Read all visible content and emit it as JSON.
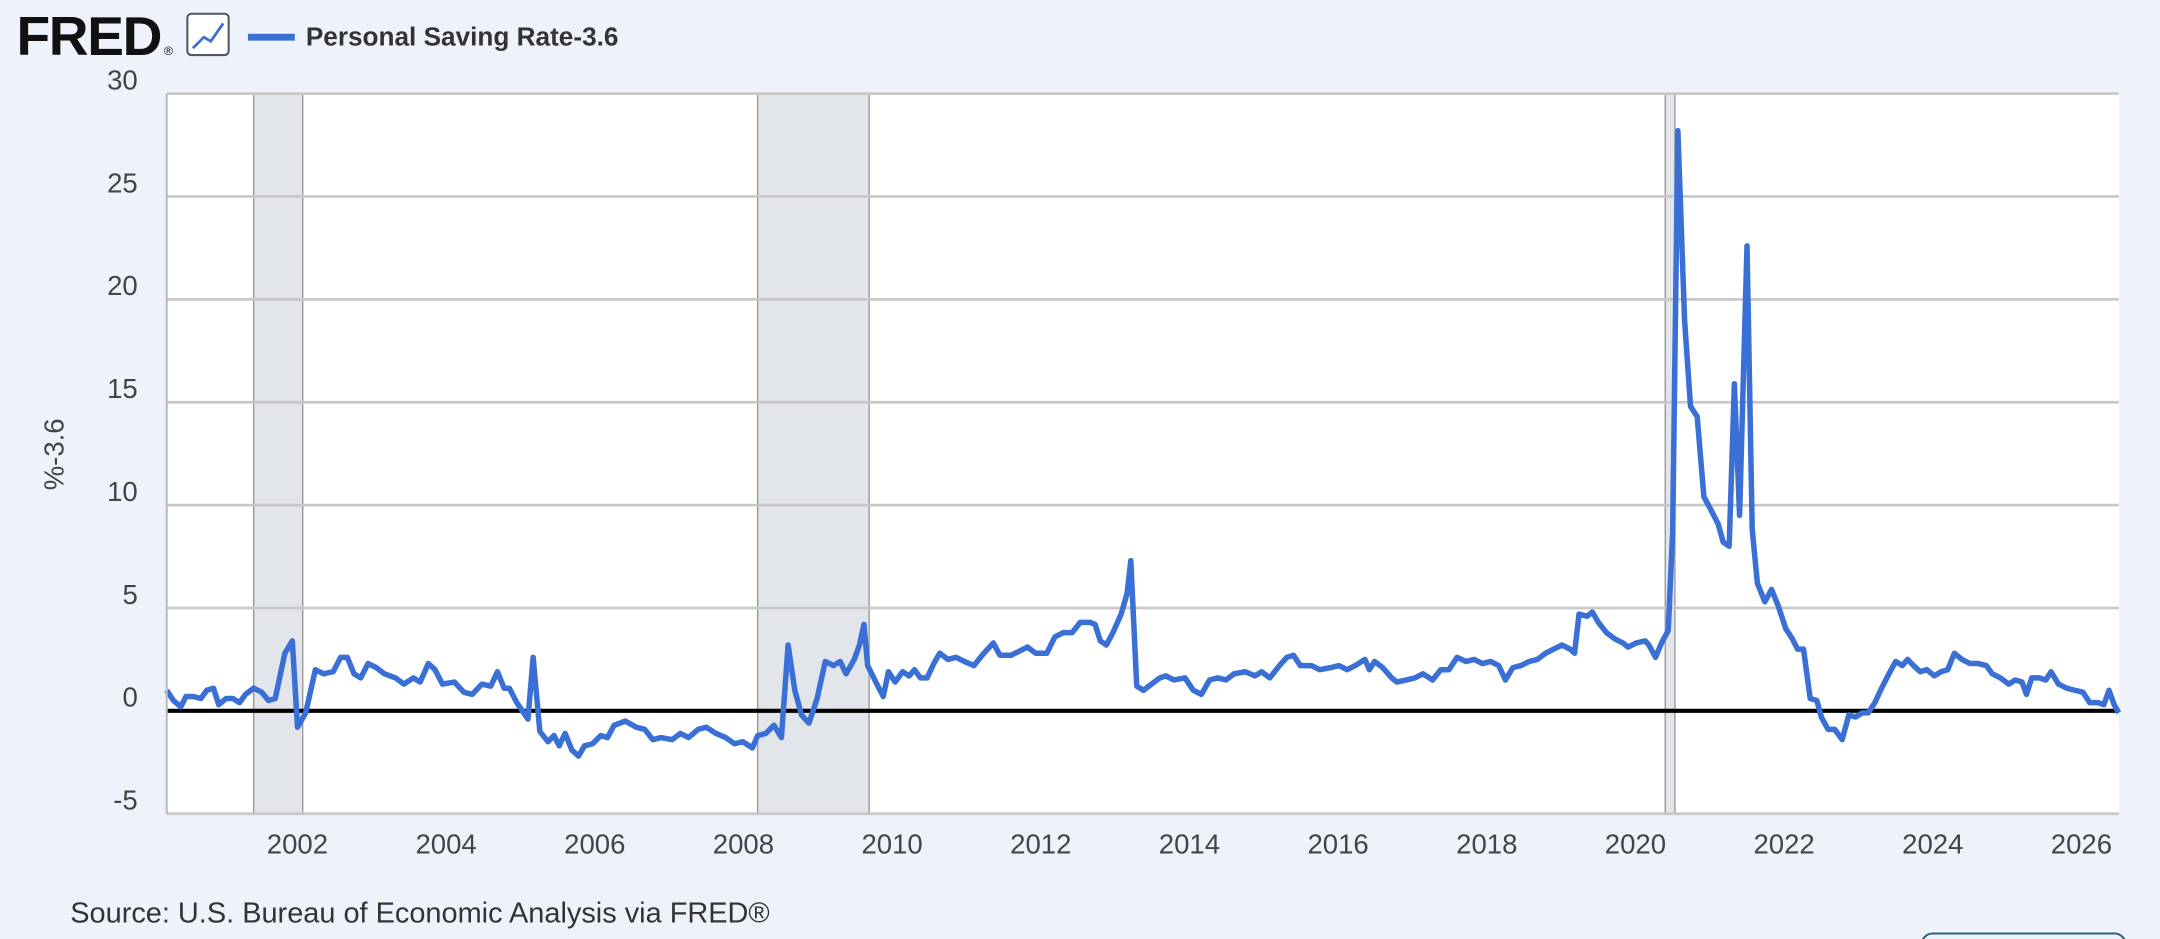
{
  "chart_data": {
    "type": "line",
    "logo": "FRED",
    "logo_mark": "®",
    "ylabel": "%-3.6",
    "source": "Source: U.S. Bureau of Economic Analysis via FRED®",
    "xlim": [
      2000,
      2026.26
    ],
    "xticks": [
      2002,
      2004,
      2006,
      2008,
      2010,
      2012,
      2014,
      2016,
      2018,
      2020,
      2022,
      2024,
      2026
    ],
    "ylim": [
      -5,
      30
    ],
    "yticks": [
      -5,
      0,
      5,
      10,
      15,
      20,
      25,
      30
    ],
    "grid": true,
    "recessions": [
      [
        2001.17,
        2001.83
      ],
      [
        2007.95,
        2009.45
      ],
      [
        2020.16,
        2020.29
      ]
    ],
    "x": [
      2000.0,
      2000.09,
      2000.19,
      2000.26,
      2000.35,
      2000.46,
      2000.54,
      2000.63,
      2000.7,
      2000.8,
      2000.89,
      2000.98,
      2001.06,
      2001.17,
      2001.28,
      2001.37,
      2001.46,
      2001.59,
      2001.69,
      2001.76,
      2001.87,
      2002.0,
      2002.11,
      2002.24,
      2002.34,
      2002.43,
      2002.52,
      2002.61,
      2002.71,
      2002.82,
      2002.93,
      2003.08,
      2003.19,
      2003.32,
      2003.41,
      2003.52,
      2003.61,
      2003.71,
      2003.87,
      2004.0,
      2004.11,
      2004.24,
      2004.36,
      2004.45,
      2004.54,
      2004.61,
      2004.71,
      2004.86,
      2004.93,
      2005.02,
      2005.13,
      2005.21,
      2005.28,
      2005.36,
      2005.45,
      2005.54,
      2005.62,
      2005.73,
      2005.84,
      2005.93,
      2006.02,
      2006.17,
      2006.32,
      2006.43,
      2006.54,
      2006.65,
      2006.8,
      2006.91,
      2007.02,
      2007.15,
      2007.26,
      2007.39,
      2007.52,
      2007.64,
      2007.75,
      2007.88,
      2007.95,
      2008.06,
      2008.17,
      2008.27,
      2008.36,
      2008.45,
      2008.54,
      2008.64,
      2008.75,
      2008.86,
      2008.97,
      2009.06,
      2009.14,
      2009.25,
      2009.32,
      2009.38,
      2009.43,
      2009.54,
      2009.64,
      2009.71,
      2009.8,
      2009.9,
      2009.99,
      2010.06,
      2010.14,
      2010.23,
      2010.32,
      2010.4,
      2010.51,
      2010.62,
      2010.73,
      2010.86,
      2010.97,
      2011.12,
      2011.21,
      2011.36,
      2011.47,
      2011.58,
      2011.69,
      2011.84,
      2011.95,
      2012.06,
      2012.18,
      2012.29,
      2012.42,
      2012.49,
      2012.56,
      2012.64,
      2012.73,
      2012.84,
      2012.92,
      2012.97,
      2013.05,
      2013.14,
      2013.25,
      2013.36,
      2013.44,
      2013.55,
      2013.7,
      2013.81,
      2013.92,
      2014.03,
      2014.14,
      2014.25,
      2014.36,
      2014.51,
      2014.64,
      2014.73,
      2014.84,
      2014.97,
      2015.07,
      2015.16,
      2015.25,
      2015.4,
      2015.51,
      2015.66,
      2015.77,
      2015.88,
      2015.99,
      2016.12,
      2016.18,
      2016.25,
      2016.36,
      2016.48,
      2016.55,
      2016.68,
      2016.79,
      2016.9,
      2017.03,
      2017.14,
      2017.25,
      2017.36,
      2017.48,
      2017.59,
      2017.7,
      2017.81,
      2017.92,
      2018.01,
      2018.11,
      2018.22,
      2018.33,
      2018.44,
      2018.55,
      2018.66,
      2018.77,
      2018.88,
      2018.94,
      2019.0,
      2019.11,
      2019.18,
      2019.26,
      2019.37,
      2019.48,
      2019.59,
      2019.66,
      2019.77,
      2019.89,
      2019.94,
      2020.03,
      2020.11,
      2020.2,
      2020.26,
      2020.33,
      2020.42,
      2020.5,
      2020.59,
      2020.68,
      2020.77,
      2020.87,
      2020.94,
      2021.02,
      2021.09,
      2021.16,
      2021.26,
      2021.33,
      2021.4,
      2021.5,
      2021.59,
      2021.68,
      2021.78,
      2021.87,
      2021.94,
      2022.02,
      2022.11,
      2022.2,
      2022.26,
      2022.35,
      2022.44,
      2022.54,
      2022.63,
      2022.72,
      2022.81,
      2022.89,
      2022.98,
      2023.07,
      2023.17,
      2023.26,
      2023.35,
      2023.42,
      2023.5,
      2023.59,
      2023.68,
      2023.78,
      2023.87,
      2023.96,
      2024.05,
      2024.15,
      2024.26,
      2024.37,
      2024.48,
      2024.56,
      2024.67,
      2024.78,
      2024.87,
      2024.96,
      2025.02,
      2025.09,
      2025.19,
      2025.28,
      2025.35,
      2025.45,
      2025.56,
      2025.67,
      2025.78,
      2025.87,
      2025.98,
      2026.06,
      2026.13,
      2026.2,
      2026.26
    ],
    "series": [
      {
        "name": "Personal Saving Rate-3.6",
        "color": "#3a6fd6",
        "values": [
          1.0,
          0.5,
          0.2,
          0.7,
          0.7,
          0.6,
          1.0,
          1.1,
          0.3,
          0.6,
          0.6,
          0.4,
          0.8,
          1.1,
          0.9,
          0.5,
          0.6,
          2.8,
          3.4,
          -0.8,
          -0.1,
          2.0,
          1.8,
          1.9,
          2.6,
          2.6,
          1.8,
          1.6,
          2.3,
          2.1,
          1.8,
          1.6,
          1.3,
          1.6,
          1.4,
          2.3,
          2.0,
          1.3,
          1.4,
          0.9,
          0.8,
          1.3,
          1.2,
          1.9,
          1.1,
          1.1,
          0.4,
          -0.4,
          2.6,
          -1.0,
          -1.5,
          -1.2,
          -1.7,
          -1.1,
          -1.9,
          -2.2,
          -1.7,
          -1.6,
          -1.2,
          -1.3,
          -0.7,
          -0.5,
          -0.8,
          -0.9,
          -1.4,
          -1.3,
          -1.4,
          -1.1,
          -1.3,
          -0.9,
          -0.8,
          -1.1,
          -1.3,
          -1.6,
          -1.5,
          -1.8,
          -1.2,
          -1.1,
          -0.7,
          -1.3,
          3.2,
          1.0,
          -0.2,
          -0.6,
          0.6,
          2.4,
          2.2,
          2.4,
          1.8,
          2.5,
          3.2,
          4.2,
          2.2,
          1.4,
          0.7,
          1.9,
          1.4,
          1.9,
          1.7,
          2.0,
          1.6,
          1.6,
          2.3,
          2.8,
          2.5,
          2.6,
          2.4,
          2.2,
          2.7,
          3.3,
          2.7,
          2.7,
          2.9,
          3.1,
          2.8,
          2.8,
          3.6,
          3.8,
          3.8,
          4.3,
          4.3,
          4.2,
          3.4,
          3.2,
          3.8,
          4.7,
          5.7,
          7.3,
          1.2,
          1.0,
          1.3,
          1.6,
          1.7,
          1.5,
          1.6,
          1.0,
          0.8,
          1.5,
          1.6,
          1.5,
          1.8,
          1.9,
          1.7,
          1.9,
          1.6,
          2.2,
          2.6,
          2.7,
          2.2,
          2.2,
          2.0,
          2.1,
          2.2,
          2.0,
          2.2,
          2.5,
          2.0,
          2.4,
          2.1,
          1.6,
          1.4,
          1.5,
          1.6,
          1.8,
          1.5,
          2.0,
          2.0,
          2.6,
          2.4,
          2.5,
          2.3,
          2.4,
          2.2,
          1.5,
          2.1,
          2.2,
          2.4,
          2.5,
          2.8,
          3.0,
          3.2,
          3.0,
          2.8,
          4.7,
          4.6,
          4.8,
          4.3,
          3.8,
          3.5,
          3.3,
          3.1,
          3.3,
          3.4,
          3.2,
          2.6,
          3.3,
          3.9,
          8.7,
          28.2,
          19.0,
          14.8,
          14.3,
          10.4,
          9.8,
          9.1,
          8.2,
          8.0,
          15.9,
          9.5,
          22.6,
          8.8,
          6.2,
          5.3,
          5.9,
          5.1,
          4.0,
          3.5,
          3.0,
          3.0,
          0.6,
          0.5,
          -0.3,
          -0.9,
          -0.9,
          -1.4,
          -0.2,
          -0.3,
          -0.1,
          -0.1,
          0.4,
          1.1,
          1.8,
          2.4,
          2.2,
          2.5,
          2.2,
          1.9,
          2.0,
          1.7,
          1.9,
          2.0,
          2.8,
          2.5,
          2.3,
          2.3,
          2.2,
          1.8,
          1.6,
          1.3,
          1.5,
          1.4,
          0.8,
          1.6,
          1.6,
          1.5,
          1.9,
          1.3,
          1.1,
          1.0,
          0.9,
          0.4,
          0.4,
          0.3,
          1.0,
          0.3,
          -0.1
        ]
      }
    ]
  }
}
